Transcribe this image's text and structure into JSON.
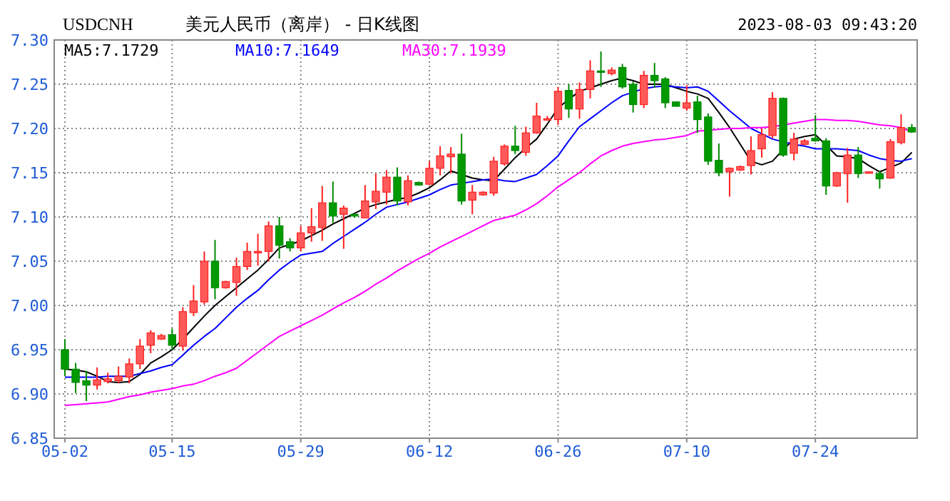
{
  "chart_data": {
    "type": "candlestick",
    "title": "美元人民币（离岸） - 日K线图",
    "subtitle": "2023-08-03 09:43:20",
    "annotations": [
      "USDCNH"
    ],
    "categories": [
      "05-02",
      null,
      null,
      null,
      null,
      null,
      null,
      null,
      null,
      null,
      "05-15",
      null,
      null,
      null,
      null,
      null,
      null,
      null,
      null,
      null,
      null,
      null,
      "05-29",
      null,
      null,
      null,
      null,
      null,
      null,
      null,
      null,
      null,
      null,
      null,
      "06-12",
      null,
      null,
      null,
      null,
      null,
      null,
      null,
      null,
      null,
      null,
      null,
      "06-26",
      null,
      null,
      null,
      null,
      null,
      null,
      null,
      null,
      null,
      null,
      null,
      "07-10",
      null,
      null,
      null,
      null,
      null,
      null,
      null,
      null,
      null,
      null,
      null,
      "07-24",
      null,
      null,
      null,
      null,
      null,
      null,
      null,
      null,
      null
    ],
    "ohlc": [
      [
        6.95,
        6.962,
        6.92,
        6.928
      ],
      [
        6.928,
        6.935,
        6.901,
        6.913
      ],
      [
        6.915,
        6.926,
        6.892,
        6.91
      ],
      [
        6.91,
        6.93,
        6.905,
        6.916
      ],
      [
        6.914,
        6.924,
        6.912,
        6.917
      ],
      [
        6.915,
        6.931,
        6.912,
        6.92
      ],
      [
        6.919,
        6.94,
        6.912,
        6.934
      ],
      [
        6.934,
        6.962,
        6.928,
        6.954
      ],
      [
        6.955,
        6.972,
        6.946,
        6.969
      ],
      [
        6.962,
        6.968,
        6.961,
        6.966
      ],
      [
        6.967,
        6.974,
        6.95,
        6.955
      ],
      [
        6.954,
        6.998,
        6.949,
        6.993
      ],
      [
        6.992,
        7.023,
        6.988,
        7.005
      ],
      [
        7.004,
        7.061,
        7.001,
        7.05
      ],
      [
        7.05,
        7.074,
        7.007,
        7.02
      ],
      [
        7.02,
        7.028,
        7.019,
        7.027
      ],
      [
        7.026,
        7.054,
        7.011,
        7.044
      ],
      [
        7.044,
        7.071,
        7.04,
        7.061
      ],
      [
        7.06,
        7.081,
        7.045,
        7.061
      ],
      [
        7.061,
        7.095,
        7.05,
        7.09
      ],
      [
        7.09,
        7.1,
        7.053,
        7.068
      ],
      [
        7.072,
        7.076,
        7.061,
        7.065
      ],
      [
        7.065,
        7.09,
        7.061,
        7.082
      ],
      [
        7.082,
        7.11,
        7.072,
        7.089
      ],
      [
        7.088,
        7.135,
        7.073,
        7.116
      ],
      [
        7.116,
        7.14,
        7.093,
        7.101
      ],
      [
        7.103,
        7.113,
        7.064,
        7.11
      ],
      [
        7.103,
        7.104,
        7.099,
        7.101
      ],
      [
        7.099,
        7.136,
        7.099,
        7.118
      ],
      [
        7.117,
        7.149,
        7.109,
        7.129
      ],
      [
        7.128,
        7.153,
        7.114,
        7.145
      ],
      [
        7.145,
        7.156,
        7.113,
        7.118
      ],
      [
        7.117,
        7.147,
        7.113,
        7.141
      ],
      [
        7.139,
        7.14,
        7.136,
        7.136
      ],
      [
        7.137,
        7.163,
        7.136,
        7.155
      ],
      [
        7.155,
        7.18,
        7.147,
        7.169
      ],
      [
        7.168,
        7.179,
        7.149,
        7.171
      ],
      [
        7.171,
        7.194,
        7.114,
        7.118
      ],
      [
        7.119,
        7.136,
        7.103,
        7.128
      ],
      [
        7.125,
        7.129,
        7.124,
        7.128
      ],
      [
        7.127,
        7.168,
        7.124,
        7.163
      ],
      [
        7.16,
        7.182,
        7.158,
        7.18
      ],
      [
        7.18,
        7.203,
        7.171,
        7.175
      ],
      [
        7.173,
        7.202,
        7.169,
        7.195
      ],
      [
        7.195,
        7.229,
        7.194,
        7.214
      ],
      [
        7.21,
        7.214,
        7.209,
        7.211
      ],
      [
        7.21,
        7.247,
        7.204,
        7.242
      ],
      [
        7.243,
        7.25,
        7.212,
        7.222
      ],
      [
        7.222,
        7.252,
        7.211,
        7.244
      ],
      [
        7.244,
        7.277,
        7.234,
        7.265
      ],
      [
        7.265,
        7.287,
        7.247,
        7.264
      ],
      [
        7.262,
        7.269,
        7.26,
        7.266
      ],
      [
        7.269,
        7.273,
        7.245,
        7.247
      ],
      [
        7.25,
        7.253,
        7.218,
        7.227
      ],
      [
        7.227,
        7.265,
        7.223,
        7.26
      ],
      [
        7.26,
        7.274,
        7.246,
        7.254
      ],
      [
        7.256,
        7.258,
        7.223,
        7.229
      ],
      [
        7.23,
        7.23,
        7.225,
        7.225
      ],
      [
        7.223,
        7.249,
        7.22,
        7.229
      ],
      [
        7.23,
        7.237,
        7.195,
        7.21
      ],
      [
        7.213,
        7.217,
        7.159,
        7.163
      ],
      [
        7.164,
        7.183,
        7.146,
        7.15
      ],
      [
        7.151,
        7.156,
        7.123,
        7.155
      ],
      [
        7.153,
        7.158,
        7.152,
        7.157
      ],
      [
        7.158,
        7.191,
        7.148,
        7.175
      ],
      [
        7.177,
        7.2,
        7.167,
        7.193
      ],
      [
        7.192,
        7.241,
        7.189,
        7.234
      ],
      [
        7.234,
        7.235,
        7.168,
        7.17
      ],
      [
        7.172,
        7.195,
        7.164,
        7.188
      ],
      [
        7.182,
        7.188,
        7.181,
        7.186
      ],
      [
        7.189,
        7.215,
        7.185,
        7.186
      ],
      [
        7.186,
        7.189,
        7.125,
        7.135
      ],
      [
        7.135,
        7.151,
        7.134,
        7.15
      ],
      [
        7.149,
        7.178,
        7.116,
        7.17
      ],
      [
        7.17,
        7.179,
        7.144,
        7.149
      ],
      [
        7.15,
        7.151,
        7.149,
        7.151
      ],
      [
        7.149,
        7.152,
        7.132,
        7.143
      ],
      [
        7.144,
        7.188,
        7.143,
        7.185
      ],
      [
        7.184,
        7.216,
        7.182,
        7.201
      ],
      [
        7.201,
        7.205,
        7.195,
        7.196
      ]
    ],
    "series": [
      {
        "name": "MA5:7.1729",
        "type": "line",
        "color": "#000000",
        "values": [
          6.928,
          6.927,
          6.925,
          6.92,
          6.914,
          6.913,
          6.914,
          6.922,
          6.935,
          6.942,
          6.95,
          6.962,
          6.975,
          6.988,
          7.0,
          7.01,
          7.02,
          7.03,
          7.04,
          7.052,
          7.065,
          7.069,
          7.073,
          7.079,
          7.085,
          7.092,
          7.098,
          7.104,
          7.11,
          7.114,
          7.117,
          7.12,
          7.122,
          7.127,
          7.133,
          7.142,
          7.152,
          7.148,
          7.144,
          7.142,
          7.141,
          7.154,
          7.167,
          7.178,
          7.188,
          7.205,
          7.223,
          7.233,
          7.242,
          7.246,
          7.25,
          7.254,
          7.257,
          7.254,
          7.25,
          7.25,
          7.25,
          7.246,
          7.242,
          7.239,
          7.234,
          7.218,
          7.201,
          7.182,
          7.163,
          7.159,
          7.163,
          7.176,
          7.188,
          7.191,
          7.193,
          7.181,
          7.169,
          7.168,
          7.166,
          7.158,
          7.151,
          7.156,
          7.161,
          7.173
        ]
      },
      {
        "name": "MA10:7.1649",
        "type": "line",
        "color": "#0000ff",
        "values": [
          6.919,
          6.919,
          6.919,
          6.919,
          6.92,
          6.92,
          6.92,
          6.923,
          6.926,
          6.93,
          6.933,
          6.944,
          6.955,
          6.965,
          6.974,
          6.986,
          6.998,
          7.008,
          7.017,
          7.029,
          7.04,
          7.049,
          7.057,
          7.059,
          7.061,
          7.07,
          7.078,
          7.086,
          7.094,
          7.103,
          7.111,
          7.114,
          7.117,
          7.121,
          7.125,
          7.131,
          7.136,
          7.138,
          7.14,
          7.142,
          7.143,
          7.141,
          7.14,
          7.144,
          7.148,
          7.158,
          7.169,
          7.186,
          7.202,
          7.211,
          7.22,
          7.229,
          7.237,
          7.241,
          7.245,
          7.247,
          7.248,
          7.247,
          7.246,
          7.247,
          7.242,
          7.231,
          7.22,
          7.21,
          7.2,
          7.194,
          7.188,
          7.185,
          7.182,
          7.18,
          7.177,
          7.177,
          7.177,
          7.176,
          7.175,
          7.17,
          7.166,
          7.164,
          7.163,
          7.166
        ]
      },
      {
        "name": "MA30:7.1939",
        "type": "line",
        "color": "#ff00ff",
        "values": [
          6.887,
          6.888,
          6.889,
          6.89,
          6.891,
          6.894,
          6.897,
          6.899,
          6.902,
          6.904,
          6.906,
          6.909,
          6.911,
          6.915,
          6.92,
          6.924,
          6.929,
          6.938,
          6.947,
          6.956,
          6.965,
          6.971,
          6.977,
          6.983,
          6.989,
          6.996,
          7.003,
          7.009,
          7.016,
          7.024,
          7.031,
          7.039,
          7.046,
          7.053,
          7.059,
          7.066,
          7.072,
          7.078,
          7.084,
          7.09,
          7.096,
          7.099,
          7.102,
          7.108,
          7.115,
          7.124,
          7.134,
          7.142,
          7.15,
          7.16,
          7.169,
          7.175,
          7.18,
          7.183,
          7.185,
          7.187,
          7.188,
          7.19,
          7.192,
          7.197,
          7.198,
          7.199,
          7.2,
          7.2,
          7.201,
          7.201,
          7.202,
          7.204,
          7.206,
          7.208,
          7.21,
          7.21,
          7.209,
          7.209,
          7.208,
          7.206,
          7.204,
          7.203,
          7.201,
          7.196
        ]
      }
    ],
    "ylim": [
      6.85,
      7.3
    ],
    "yticks": [
      {
        "value": 6.85,
        "label": "6.85"
      },
      {
        "value": 6.9,
        "label": "6.90"
      },
      {
        "value": 6.95,
        "label": "6.95"
      },
      {
        "value": 7.0,
        "label": "7.00"
      },
      {
        "value": 7.05,
        "label": "7.05"
      },
      {
        "value": 7.1,
        "label": "7.10"
      },
      {
        "value": 7.15,
        "label": "7.15"
      },
      {
        "value": 7.2,
        "label": "7.20"
      },
      {
        "value": 7.25,
        "label": "7.25"
      },
      {
        "value": 7.3,
        "label": "7.30"
      }
    ],
    "grid": true,
    "legend": "top left"
  }
}
